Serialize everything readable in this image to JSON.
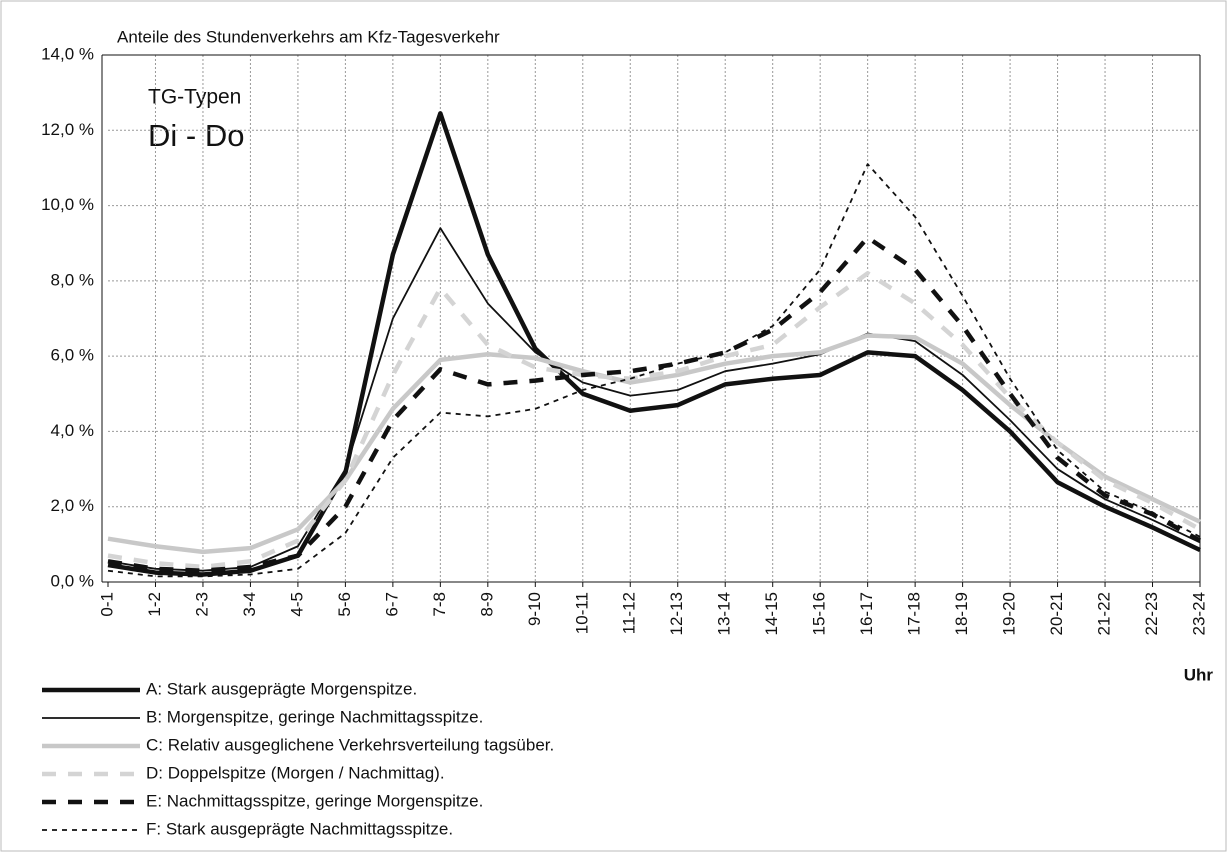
{
  "chart_data": {
    "type": "line",
    "title": "Anteile des Stundenverkehrs am Kfz-Tagesverkehr",
    "annotations": [
      "TG-Typen",
      "Di - Do"
    ],
    "x_label": "Uhr",
    "categories": [
      "0-1",
      "1-2",
      "2-3",
      "3-4",
      "4-5",
      "5-6",
      "6-7",
      "7-8",
      "8-9",
      "9-10",
      "10-11",
      "11-12",
      "12-13",
      "13-14",
      "14-15",
      "15-16",
      "16-17",
      "17-18",
      "18-19",
      "19-20",
      "20-21",
      "21-22",
      "22-23",
      "23-24"
    ],
    "ylim": [
      0,
      14
    ],
    "yticks": [
      {
        "value": 0,
        "label": "0,0 %"
      },
      {
        "value": 2,
        "label": "2,0 %"
      },
      {
        "value": 4,
        "label": "4,0 %"
      },
      {
        "value": 6,
        "label": "6,0 %"
      },
      {
        "value": 8,
        "label": "8,0 %"
      },
      {
        "value": 10,
        "label": "10,0 %"
      },
      {
        "value": 12,
        "label": "12,0 %"
      },
      {
        "value": 14,
        "label": "14,0 %"
      }
    ],
    "grid": true,
    "series": [
      {
        "name": "A: Stark ausgeprägte Morgenspitze.",
        "color": "#111111",
        "line_style": "solid-bold",
        "values": [
          0.45,
          0.25,
          0.2,
          0.3,
          0.7,
          2.9,
          8.7,
          12.45,
          8.7,
          6.2,
          5.0,
          4.55,
          4.7,
          5.25,
          5.4,
          5.5,
          6.1,
          6.0,
          5.1,
          4.0,
          2.65,
          2.0,
          1.45,
          0.85
        ]
      },
      {
        "name": "B: Morgenspitze, geringe Nachmittagsspitze.",
        "color": "#111111",
        "line_style": "solid",
        "values": [
          0.55,
          0.35,
          0.3,
          0.4,
          0.95,
          3.0,
          7.0,
          9.4,
          7.4,
          6.1,
          5.3,
          4.95,
          5.1,
          5.6,
          5.8,
          6.05,
          6.6,
          6.4,
          5.5,
          4.3,
          3.0,
          2.2,
          1.65,
          1.05
        ]
      },
      {
        "name": "C: Relativ ausgeglichene Verkehrsverteilung tagsüber.",
        "color": "#c8c8c8",
        "line_style": "solid-bold",
        "values": [
          1.15,
          0.95,
          0.8,
          0.9,
          1.4,
          2.7,
          4.6,
          5.9,
          6.05,
          5.95,
          5.6,
          5.3,
          5.5,
          5.8,
          6.0,
          6.1,
          6.55,
          6.5,
          5.8,
          4.7,
          3.7,
          2.8,
          2.2,
          1.6
        ]
      },
      {
        "name": "D: Doppelspitze (Morgen / Nachmittag).",
        "color": "#d4d4d4",
        "line_style": "dashed-bold",
        "values": [
          0.7,
          0.5,
          0.4,
          0.55,
          1.1,
          2.7,
          5.5,
          7.8,
          6.3,
          5.7,
          5.5,
          5.4,
          5.6,
          6.0,
          6.3,
          7.3,
          8.2,
          7.4,
          6.3,
          4.9,
          3.7,
          2.7,
          2.1,
          1.4
        ]
      },
      {
        "name": "E: Nachmittagsspitze, geringe Morgenspitze.",
        "color": "#111111",
        "line_style": "dashed-bold",
        "values": [
          0.55,
          0.35,
          0.3,
          0.4,
          0.7,
          2.0,
          4.3,
          5.65,
          5.25,
          5.35,
          5.5,
          5.6,
          5.8,
          6.1,
          6.7,
          7.7,
          9.15,
          8.3,
          6.8,
          5.0,
          3.3,
          2.3,
          1.8,
          1.1
        ]
      },
      {
        "name": "F: Stark ausgeprägte Nachmittagsspitze.",
        "color": "#111111",
        "line_style": "dotted",
        "values": [
          0.3,
          0.15,
          0.15,
          0.2,
          0.35,
          1.3,
          3.3,
          4.5,
          4.4,
          4.6,
          5.1,
          5.4,
          5.8,
          6.1,
          6.8,
          8.3,
          11.1,
          9.7,
          7.6,
          5.4,
          3.5,
          2.4,
          1.85,
          1.2
        ]
      }
    ]
  }
}
